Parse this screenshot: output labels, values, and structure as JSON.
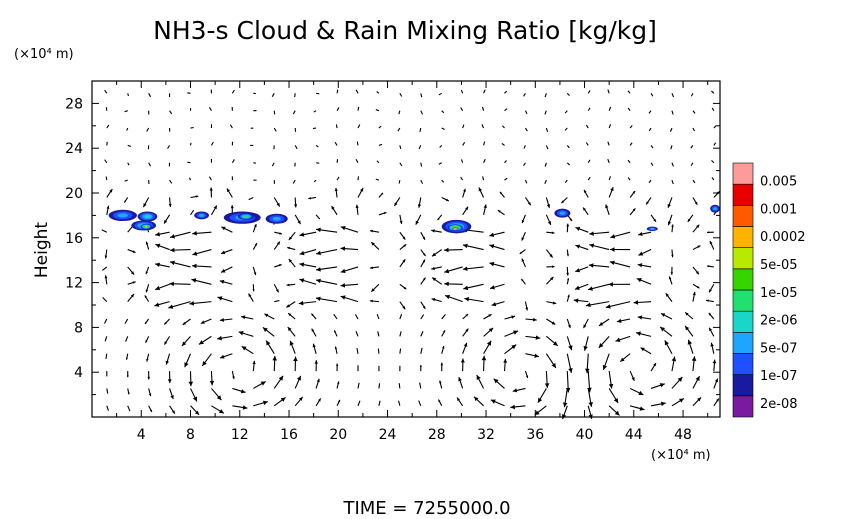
{
  "chart_data": {
    "type": "heatmap",
    "title": "NH3-s Cloud & Rain Mixing Ratio [kg/kg]",
    "ylabel": "Height",
    "xunit": "(×10⁴ m)",
    "yunit": "(×10⁴ m)",
    "xlim": [
      0,
      51
    ],
    "ylim": [
      0,
      30
    ],
    "xticks": [
      4,
      8,
      12,
      16,
      20,
      24,
      28,
      32,
      36,
      40,
      44,
      48
    ],
    "yticks": [
      4,
      8,
      12,
      16,
      20,
      24,
      28
    ],
    "grid": false,
    "colorbar": {
      "colors": [
        "#7a1aa0",
        "#1a1aa0",
        "#1f4fff",
        "#1ea6ff",
        "#19d6c8",
        "#1fe070",
        "#36d400",
        "#b8ea00",
        "#ffb300",
        "#ff5a00",
        "#e80000",
        "#ff9a9a"
      ],
      "labels": [
        "2e-08",
        "1e-07",
        "5e-07",
        "2e-06",
        "1e-05",
        "5e-05",
        "0.0002",
        "0.001",
        "0.005"
      ]
    },
    "cloud_blobs": [
      {
        "x": 2.5,
        "y": 18.0,
        "w": 2.3,
        "h": 1.0,
        "level": 2
      },
      {
        "x": 4.5,
        "y": 17.9,
        "w": 1.6,
        "h": 0.9,
        "level": 3
      },
      {
        "x": 4.2,
        "y": 17.1,
        "w": 2.0,
        "h": 0.9,
        "level": 3
      },
      {
        "x": 4.4,
        "y": 17.0,
        "w": 0.9,
        "h": 0.5,
        "level": 6
      },
      {
        "x": 8.9,
        "y": 18.0,
        "w": 1.2,
        "h": 0.7,
        "level": 2
      },
      {
        "x": 12.2,
        "y": 17.8,
        "w": 3.0,
        "h": 1.1,
        "level": 2
      },
      {
        "x": 12.5,
        "y": 17.9,
        "w": 1.3,
        "h": 0.6,
        "level": 4
      },
      {
        "x": 15.0,
        "y": 17.7,
        "w": 1.8,
        "h": 0.9,
        "level": 2
      },
      {
        "x": 29.6,
        "y": 17.0,
        "w": 2.4,
        "h": 1.2,
        "level": 3
      },
      {
        "x": 29.5,
        "y": 16.9,
        "w": 1.2,
        "h": 0.6,
        "level": 8
      },
      {
        "x": 29.5,
        "y": 16.8,
        "w": 0.5,
        "h": 0.3,
        "level": 10
      },
      {
        "x": 38.2,
        "y": 18.2,
        "w": 1.3,
        "h": 0.8,
        "level": 2
      },
      {
        "x": 45.5,
        "y": 16.8,
        "w": 0.9,
        "h": 0.4,
        "level": 2
      },
      {
        "x": 50.6,
        "y": 18.6,
        "w": 0.8,
        "h": 0.7,
        "level": 2
      }
    ],
    "circulation_cells": [
      {
        "x": 12.0,
        "y": 4.2,
        "rx": 5.0,
        "ry": 4.2,
        "sense": 1
      },
      {
        "x": 35.0,
        "y": 4.0,
        "rx": 4.5,
        "ry": 4.0,
        "sense": -1
      },
      {
        "x": 44.6,
        "y": 4.5,
        "rx": 5.0,
        "ry": 4.3,
        "sense": 1
      }
    ],
    "footer": "TIME = 7255000.0"
  }
}
